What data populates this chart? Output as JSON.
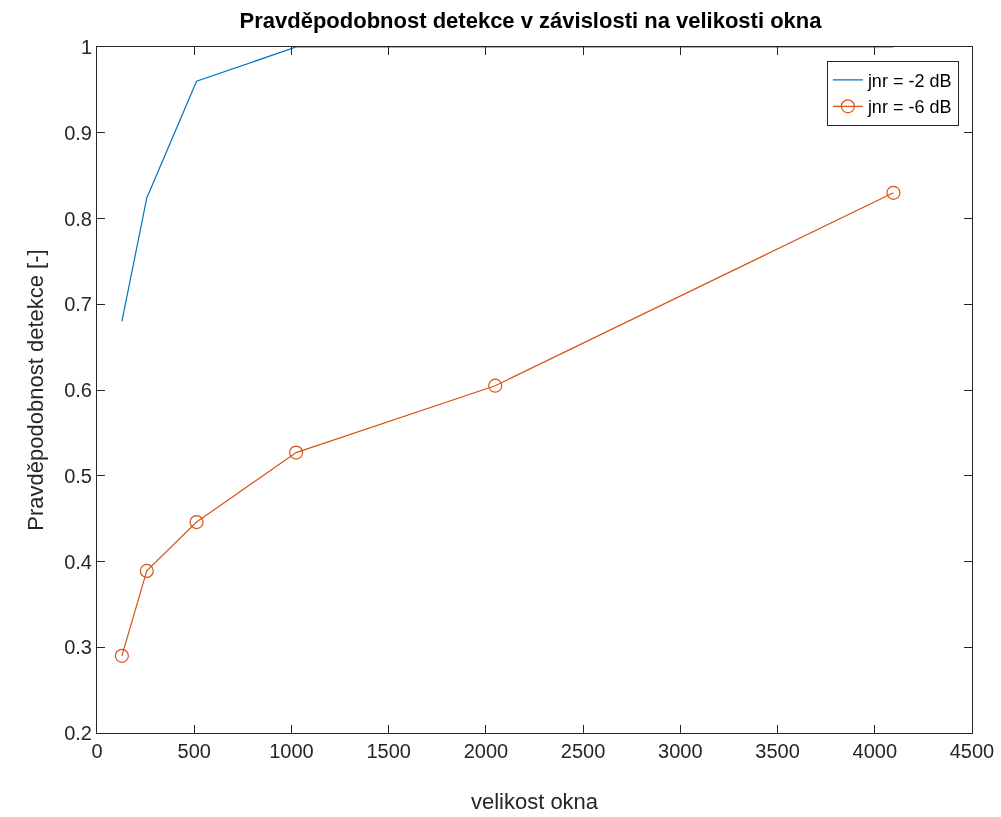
{
  "chart_data": {
    "type": "line",
    "title": "Pravděpodobnost detekce v závislosti na velikosti okna",
    "xlabel": "velikost okna",
    "ylabel": "Pravděpodobnost detekce [-]",
    "x": [
      128,
      256,
      512,
      1024,
      2048,
      4096
    ],
    "series": [
      {
        "name": "jnr = -2 dB",
        "color": "#0072bd",
        "marker": "none",
        "values": [
          0.68,
          0.824,
          0.96,
          1,
          1,
          1
        ]
      },
      {
        "name": "jnr = -6 dB",
        "color": "#d95319",
        "marker": "circle",
        "values": [
          0.29,
          0.389,
          0.446,
          0.527,
          0.605,
          0.83
        ]
      }
    ],
    "xlim": [
      0,
      4500
    ],
    "xticks": [
      0,
      500,
      1000,
      1500,
      2000,
      2500,
      3000,
      3500,
      4000,
      4500
    ],
    "ylim": [
      0.2,
      1
    ],
    "yticks": [
      0.2,
      0.3,
      0.4,
      0.5,
      0.6,
      0.7,
      0.8,
      0.9,
      1
    ],
    "grid": false,
    "legend": "top right"
  }
}
